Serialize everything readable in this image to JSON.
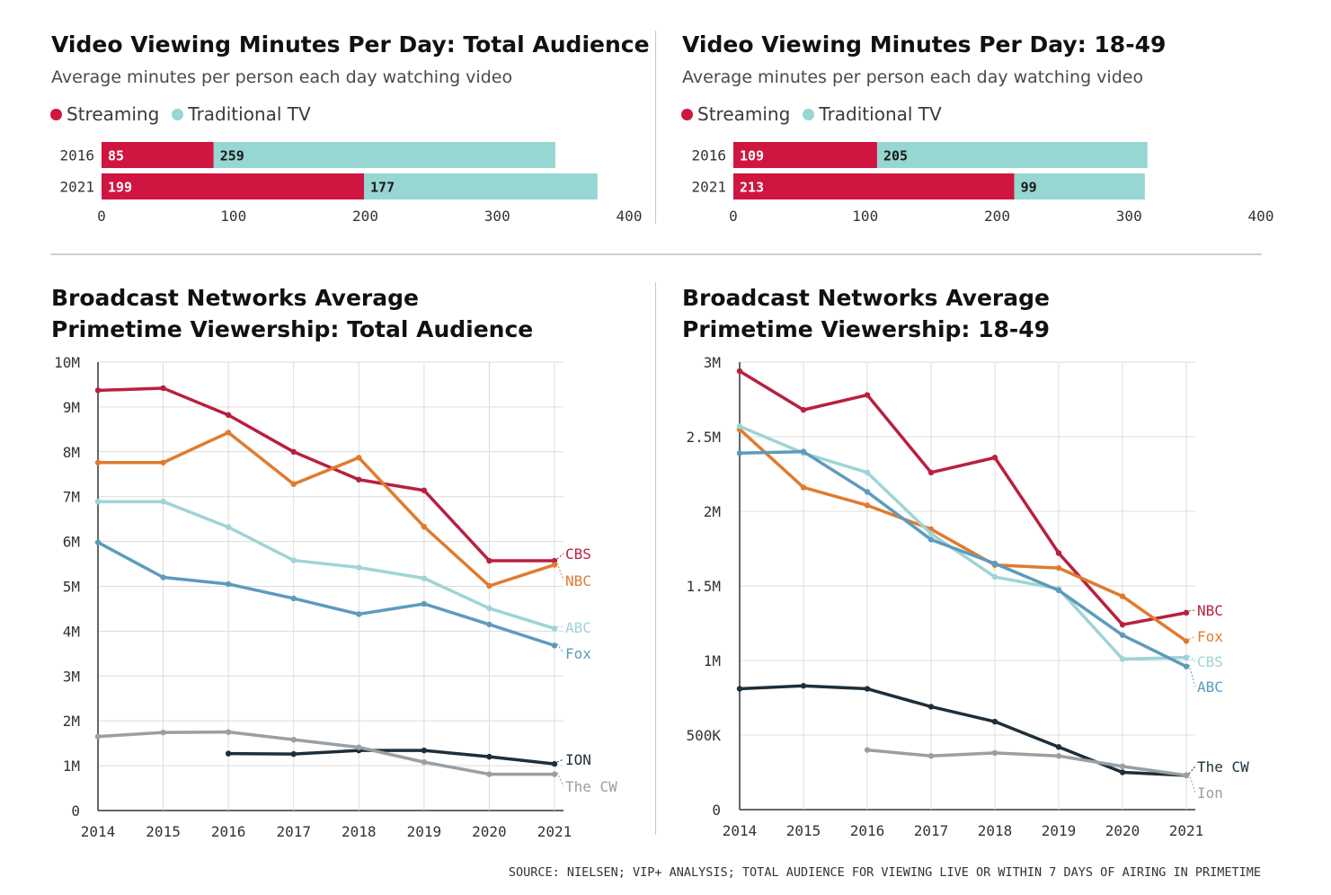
{
  "source": "SOURCE: NIELSEN; VIP+ ANALYSIS; TOTAL AUDIENCE FOR VIEWING LIVE OR WITHIN 7 DAYS OF AIRING IN PRIMETIME",
  "legend": {
    "streaming": "Streaming",
    "traditional": "Traditional TV"
  },
  "colors": {
    "streaming": "#cf1540",
    "traditional": "#96d6d3",
    "crimson": "#b8203f",
    "orange": "#e07b2e",
    "lightblue": "#9fd4d6",
    "steel": "#5d9bbd",
    "dark": "#1e2f3a",
    "gray": "#9a9fa2"
  },
  "panels": {
    "p1": {
      "title": "Video Viewing Minutes Per Day: Total Audience",
      "subtitle": "Average minutes per person each day watching video"
    },
    "p2": {
      "title": "Video Viewing Minutes Per Day: 18-49",
      "subtitle": "Average minutes per person each day watching video"
    },
    "p3": {
      "title": "Broadcast Networks Average Primetime Viewership: Total Audience"
    },
    "p4": {
      "title": "Broadcast Networks Average Primetime Viewership: 18-49"
    }
  },
  "chart_data": [
    {
      "type": "bar",
      "orientation": "horizontal",
      "stacked": true,
      "title": "Video Viewing Minutes Per Day: Total Audience",
      "subtitle": "Average minutes per person each day watching video",
      "categories": [
        "2016",
        "2021"
      ],
      "series": [
        {
          "name": "Streaming",
          "values": [
            85,
            199
          ]
        },
        {
          "name": "Traditional TV",
          "values": [
            259,
            177
          ]
        }
      ],
      "xlim": [
        0,
        400
      ],
      "xticks": [
        "0",
        "100",
        "200",
        "300",
        "400"
      ],
      "legend": "top-left"
    },
    {
      "type": "bar",
      "orientation": "horizontal",
      "stacked": true,
      "title": "Video Viewing Minutes Per Day: 18-49",
      "subtitle": "Average minutes per person each day watching video",
      "categories": [
        "2016",
        "2021"
      ],
      "series": [
        {
          "name": "Streaming",
          "values": [
            109,
            213
          ]
        },
        {
          "name": "Traditional TV",
          "values": [
            205,
            99
          ]
        }
      ],
      "xlim": [
        0,
        400
      ],
      "xticks": [
        "0",
        "100",
        "200",
        "300",
        "400"
      ],
      "legend": "top-left"
    },
    {
      "type": "line",
      "title": "Broadcast Networks Average Primetime Viewership: Total Audience",
      "x": [
        2014,
        2015,
        2016,
        2017,
        2018,
        2019,
        2020,
        2021
      ],
      "ylim": [
        0,
        10000000
      ],
      "yticks": [
        "0",
        "1M",
        "2M",
        "3M",
        "4M",
        "5M",
        "6M",
        "7M",
        "8M",
        "9M",
        "10M"
      ],
      "grid": true,
      "series": [
        {
          "name": "CBS",
          "color": "crimson",
          "values": [
            9370000,
            9420000,
            8820000,
            8000000,
            7380000,
            7140000,
            5570000,
            5570000
          ]
        },
        {
          "name": "NBC",
          "color": "orange",
          "values": [
            7760000,
            7760000,
            8430000,
            7280000,
            7870000,
            6330000,
            5010000,
            5480000
          ]
        },
        {
          "name": "ABC",
          "color": "lightblue",
          "values": [
            6890000,
            6890000,
            6320000,
            5580000,
            5420000,
            5180000,
            4510000,
            4060000
          ]
        },
        {
          "name": "Fox",
          "color": "steel",
          "values": [
            5980000,
            5200000,
            5050000,
            4730000,
            4380000,
            4610000,
            4150000,
            3680000
          ]
        },
        {
          "name": "ION",
          "color": "dark",
          "values": [
            null,
            null,
            1270000,
            1260000,
            1340000,
            1340000,
            1200000,
            1040000
          ]
        },
        {
          "name": "The CW",
          "color": "gray",
          "values": [
            1650000,
            1740000,
            1750000,
            1580000,
            1410000,
            1080000,
            810000,
            810000
          ]
        }
      ]
    },
    {
      "type": "line",
      "title": "Broadcast Networks Average Primetime Viewership: 18-49",
      "x": [
        2014,
        2015,
        2016,
        2017,
        2018,
        2019,
        2020,
        2021
      ],
      "ylim": [
        0,
        3000000
      ],
      "yticks": [
        "0",
        "500K",
        "1M",
        "1.5M",
        "2M",
        "2.5M",
        "3M"
      ],
      "grid": true,
      "series": [
        {
          "name": "NBC",
          "color": "crimson",
          "values": [
            2940000,
            2680000,
            2780000,
            2260000,
            2360000,
            1720000,
            1240000,
            1320000
          ]
        },
        {
          "name": "Fox",
          "color": "orange",
          "values": [
            2550000,
            2160000,
            2040000,
            1880000,
            1640000,
            1620000,
            1430000,
            1130000
          ]
        },
        {
          "name": "CBS",
          "color": "lightblue",
          "values": [
            2570000,
            2390000,
            2260000,
            1850000,
            1560000,
            1480000,
            1010000,
            1020000
          ]
        },
        {
          "name": "ABC",
          "color": "steel",
          "values": [
            2390000,
            2400000,
            2130000,
            1810000,
            1650000,
            1470000,
            1170000,
            960000
          ]
        },
        {
          "name": "The CW",
          "color": "dark",
          "values": [
            810000,
            830000,
            810000,
            690000,
            590000,
            420000,
            250000,
            230000
          ]
        },
        {
          "name": "Ion",
          "color": "gray",
          "values": [
            null,
            null,
            400000,
            360000,
            380000,
            360000,
            290000,
            230000
          ]
        }
      ]
    }
  ]
}
